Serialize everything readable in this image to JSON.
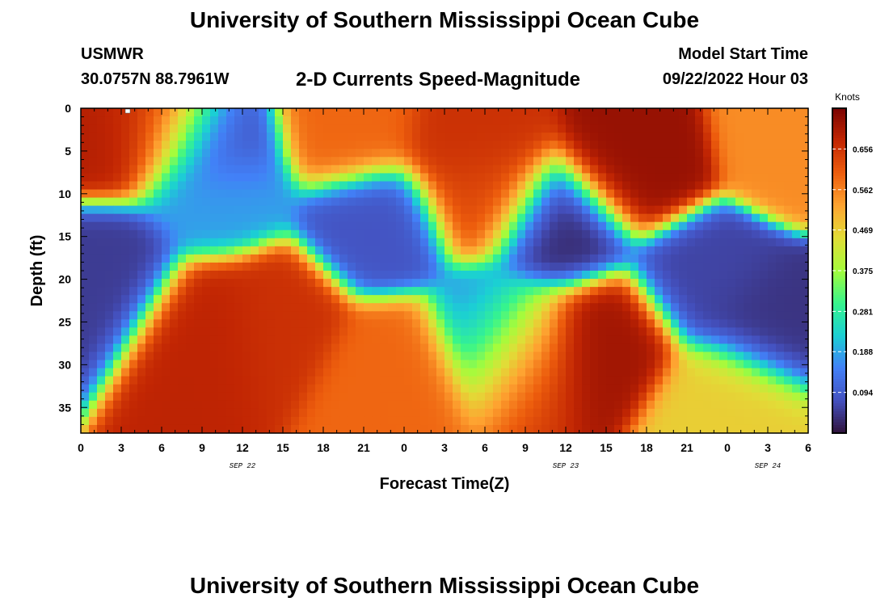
{
  "header": {
    "title": "University of Southern Mississippi Ocean Cube",
    "station": "USMWR",
    "coords": "30.0757N  88.7961W",
    "subtitle": "2-D Currents Speed-Magnitude",
    "model_start_label": "Model Start Time",
    "model_start_value": "09/22/2022 Hour 03"
  },
  "footer": {
    "title": "University of Southern Mississippi Ocean Cube"
  },
  "chart_data": {
    "type": "heatmap",
    "xlabel": "Forecast Time(Z)",
    "ylabel": "Depth (ft)",
    "x_tick_labels": [
      "0",
      "3",
      "6",
      "9",
      "12",
      "15",
      "18",
      "21",
      "0",
      "3",
      "6",
      "9",
      "12",
      "15",
      "18",
      "21",
      "0",
      "3",
      "6"
    ],
    "x_range_hours": [
      0,
      54
    ],
    "date_labels": [
      {
        "text": "SEP 22",
        "hour": 12
      },
      {
        "text": "SEP 23",
        "hour": 36
      },
      {
        "text": "SEP 24",
        "hour": 51
      }
    ],
    "y_ticks": [
      0,
      5,
      10,
      15,
      20,
      25,
      30,
      35
    ],
    "y_range": [
      0,
      38
    ],
    "y_inverted": true,
    "colorbar": {
      "label": "Knots",
      "ticks": [
        "0.094",
        "0.188",
        "0.281",
        "0.375",
        "0.469",
        "0.562",
        "0.656"
      ],
      "tick_values": [
        0.094,
        0.188,
        0.281,
        0.375,
        0.469,
        0.562,
        0.656
      ],
      "range": [
        0.0,
        0.75
      ],
      "colormap": "turbo"
    },
    "z_blobs_knots": [
      {
        "h": 2,
        "d": 3,
        "v": 0.69
      },
      {
        "h": 6,
        "d": 2,
        "v": 0.64
      },
      {
        "h": 2,
        "d": 19,
        "v": 0.05
      },
      {
        "h": 9.5,
        "d": 4,
        "v": 0.07
      },
      {
        "h": 10,
        "d": 10,
        "v": 0.18
      },
      {
        "h": 9.5,
        "d": 25,
        "v": 0.68
      },
      {
        "h": 14.5,
        "d": 24,
        "v": 0.66
      },
      {
        "h": 20,
        "d": 2,
        "v": 0.59
      },
      {
        "h": 22,
        "d": 14,
        "v": 0.08
      },
      {
        "h": 23.5,
        "d": 30,
        "v": 0.59
      },
      {
        "h": 29,
        "d": 4,
        "v": 0.66
      },
      {
        "h": 30,
        "d": 10,
        "v": 0.63
      },
      {
        "h": 35.5,
        "d": 14,
        "v": 0.03
      },
      {
        "h": 31,
        "d": 26,
        "v": 0.15
      },
      {
        "h": 33,
        "d": 28,
        "v": 0.66
      },
      {
        "h": 39,
        "d": 27,
        "v": 0.71
      },
      {
        "h": 41,
        "d": 7,
        "v": 0.72
      },
      {
        "h": 46.5,
        "d": 20,
        "v": 0.06
      },
      {
        "h": 51,
        "d": 25,
        "v": 0.04
      },
      {
        "h": 48,
        "d": 34,
        "v": 0.47
      },
      {
        "h": 53,
        "d": 4,
        "v": 0.55
      }
    ]
  }
}
